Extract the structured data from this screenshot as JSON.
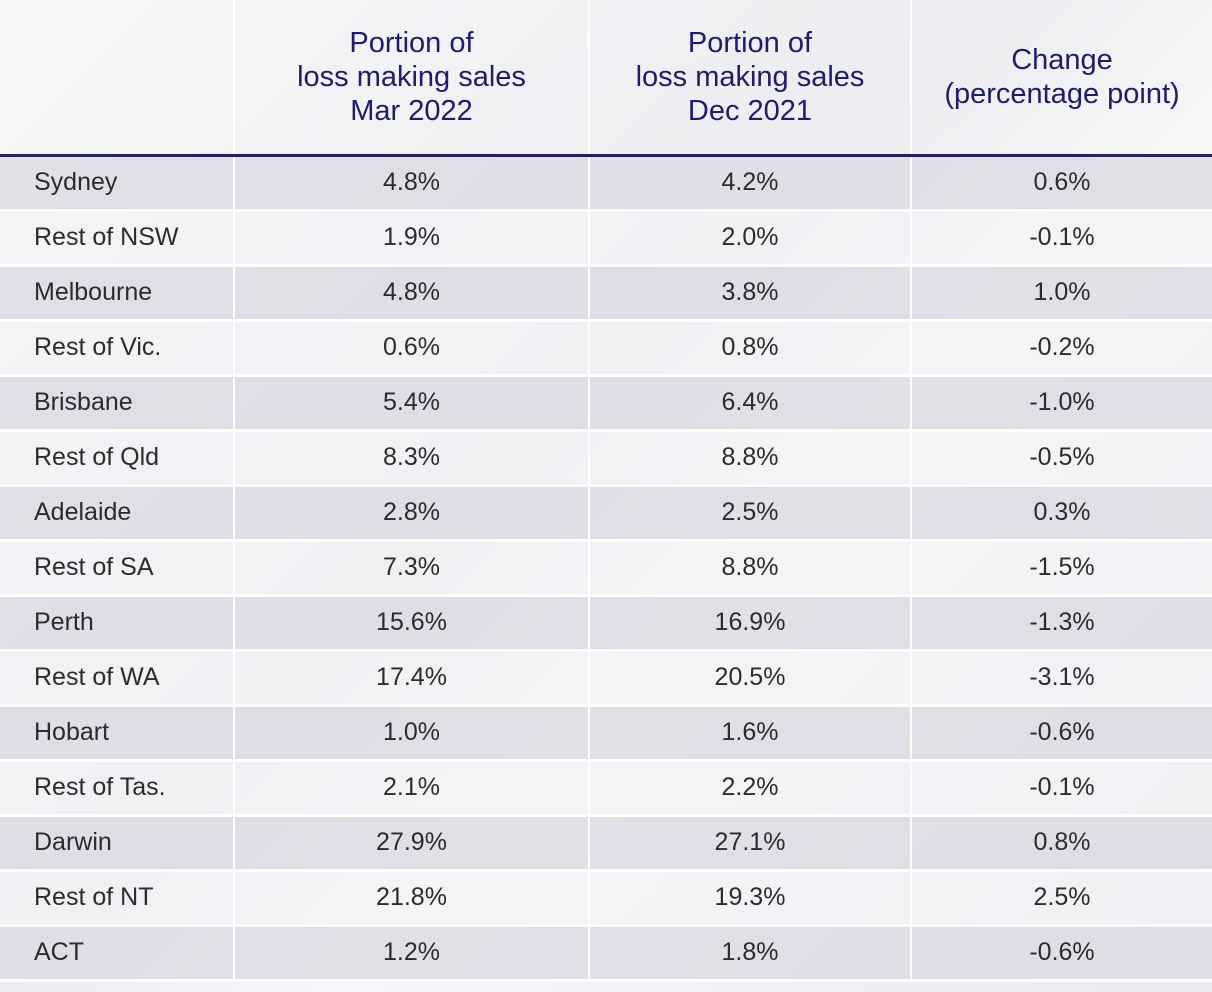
{
  "chart_data": {
    "type": "table",
    "columns": [
      "",
      "Portion of\nloss making sales\nMar 2022",
      "Portion of\nloss making sales\nDec 2021",
      "Change\n(percentage point)"
    ],
    "rows": [
      [
        "Sydney",
        "4.8%",
        "4.2%",
        "0.6%"
      ],
      [
        "Rest of NSW",
        "1.9%",
        "2.0%",
        "-0.1%"
      ],
      [
        "Melbourne",
        "4.8%",
        "3.8%",
        "1.0%"
      ],
      [
        "Rest of Vic.",
        "0.6%",
        "0.8%",
        "-0.2%"
      ],
      [
        "Brisbane",
        "5.4%",
        "6.4%",
        "-1.0%"
      ],
      [
        "Rest of Qld",
        "8.3%",
        "8.8%",
        "-0.5%"
      ],
      [
        "Adelaide",
        "2.8%",
        "2.5%",
        "0.3%"
      ],
      [
        "Rest of SA",
        "7.3%",
        "8.8%",
        "-1.5%"
      ],
      [
        "Perth",
        "15.6%",
        "16.9%",
        "-1.3%"
      ],
      [
        "Rest of WA",
        "17.4%",
        "20.5%",
        "-3.1%"
      ],
      [
        "Hobart",
        "1.0%",
        "1.6%",
        "-0.6%"
      ],
      [
        "Rest of Tas.",
        "2.1%",
        "2.2%",
        "-0.1%"
      ],
      [
        "Darwin",
        "27.9%",
        "27.1%",
        "0.8%"
      ],
      [
        "Rest of NT",
        "21.8%",
        "19.3%",
        "2.5%"
      ],
      [
        "ACT",
        "1.2%",
        "1.8%",
        "-0.6%"
      ]
    ]
  },
  "colors": {
    "header_text": "#1d1d6b",
    "header_rule": "#23235e",
    "row_shade": "#dad8e2",
    "body_text": "#2c2c2c"
  }
}
